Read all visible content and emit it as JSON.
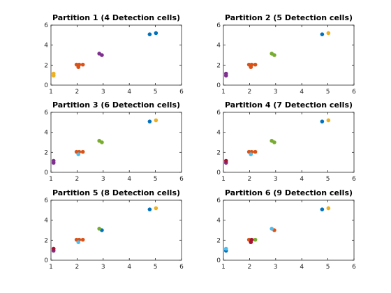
{
  "chart_data": [
    {
      "type": "scatter",
      "title": "Partition 1 (4 Detection cells)",
      "xlim": [
        1,
        6
      ],
      "ylim": [
        0,
        6
      ],
      "xticks": [
        1,
        2,
        3,
        4,
        5,
        6
      ],
      "yticks": [
        0,
        2,
        4,
        6
      ],
      "series": [
        {
          "color": "#0072BD",
          "points": [
            [
              4.78,
              5.08
            ],
            [
              5.02,
              5.2
            ]
          ]
        },
        {
          "color": "#D95319",
          "points": [
            [
              1.98,
              2.05
            ],
            [
              2.05,
              1.8
            ],
            [
              2.08,
              2.05
            ],
            [
              2.22,
              2.05
            ]
          ]
        },
        {
          "color": "#EDB120",
          "points": [
            [
              1.1,
              1.15
            ],
            [
              1.1,
              0.95
            ]
          ]
        },
        {
          "color": "#7E2F8E",
          "points": [
            [
              2.85,
              3.15
            ],
            [
              2.95,
              3.0
            ]
          ]
        }
      ]
    },
    {
      "type": "scatter",
      "title": "Partition 2 (5 Detection cells)",
      "xlim": [
        1,
        6
      ],
      "ylim": [
        0,
        6
      ],
      "xticks": [
        1,
        2,
        3,
        4,
        5,
        6
      ],
      "yticks": [
        0,
        2,
        4,
        6
      ],
      "series": [
        {
          "color": "#0072BD",
          "points": [
            [
              4.78,
              5.08
            ]
          ]
        },
        {
          "color": "#D95319",
          "points": [
            [
              1.98,
              2.05
            ],
            [
              2.05,
              1.8
            ],
            [
              2.08,
              2.05
            ],
            [
              2.22,
              2.05
            ]
          ]
        },
        {
          "color": "#EDB120",
          "points": [
            [
              5.02,
              5.2
            ]
          ]
        },
        {
          "color": "#7E2F8E",
          "points": [
            [
              1.1,
              1.15
            ],
            [
              1.1,
              0.95
            ]
          ]
        },
        {
          "color": "#77AC30",
          "points": [
            [
              2.85,
              3.15
            ],
            [
              2.95,
              3.0
            ]
          ]
        }
      ]
    },
    {
      "type": "scatter",
      "title": "Partition 3 (6 Detection cells)",
      "xlim": [
        1,
        6
      ],
      "ylim": [
        0,
        6
      ],
      "xticks": [
        1,
        2,
        3,
        4,
        5,
        6
      ],
      "yticks": [
        0,
        2,
        4,
        6
      ],
      "series": [
        {
          "color": "#0072BD",
          "points": [
            [
              4.78,
              5.08
            ]
          ]
        },
        {
          "color": "#D95319",
          "points": [
            [
              1.98,
              2.05
            ],
            [
              2.08,
              2.05
            ],
            [
              2.22,
              2.05
            ]
          ]
        },
        {
          "color": "#EDB120",
          "points": [
            [
              5.02,
              5.2
            ]
          ]
        },
        {
          "color": "#7E2F8E",
          "points": [
            [
              1.1,
              1.15
            ],
            [
              1.1,
              0.95
            ]
          ]
        },
        {
          "color": "#77AC30",
          "points": [
            [
              2.85,
              3.15
            ],
            [
              2.95,
              3.0
            ]
          ]
        },
        {
          "color": "#4DBEEE",
          "points": [
            [
              2.05,
              1.8
            ]
          ]
        }
      ]
    },
    {
      "type": "scatter",
      "title": "Partition 4 (7 Detection cells)",
      "xlim": [
        1,
        6
      ],
      "ylim": [
        0,
        6
      ],
      "xticks": [
        1,
        2,
        3,
        4,
        5,
        6
      ],
      "yticks": [
        0,
        2,
        4,
        6
      ],
      "series": [
        {
          "color": "#0072BD",
          "points": [
            [
              4.78,
              5.08
            ]
          ]
        },
        {
          "color": "#D95319",
          "points": [
            [
              1.98,
              2.05
            ],
            [
              2.08,
              2.05
            ],
            [
              2.22,
              2.05
            ]
          ]
        },
        {
          "color": "#EDB120",
          "points": [
            [
              5.02,
              5.2
            ]
          ]
        },
        {
          "color": "#7E2F8E",
          "points": [
            [
              1.1,
              0.95
            ]
          ]
        },
        {
          "color": "#77AC30",
          "points": [
            [
              2.85,
              3.15
            ],
            [
              2.95,
              3.0
            ]
          ]
        },
        {
          "color": "#4DBEEE",
          "points": [
            [
              2.05,
              1.8
            ]
          ]
        },
        {
          "color": "#A2142F",
          "points": [
            [
              1.1,
              1.15
            ]
          ]
        }
      ]
    },
    {
      "type": "scatter",
      "title": "Partition 5 (8 Detection cells)",
      "xlim": [
        1,
        6
      ],
      "ylim": [
        0,
        6
      ],
      "xticks": [
        1,
        2,
        3,
        4,
        5,
        6
      ],
      "yticks": [
        0,
        2,
        4,
        6
      ],
      "series": [
        {
          "color": "#0072BD",
          "points": [
            [
              4.78,
              5.08
            ],
            [
              2.95,
              3.0
            ]
          ]
        },
        {
          "color": "#D95319",
          "points": [
            [
              1.98,
              2.05
            ],
            [
              2.08,
              2.05
            ],
            [
              2.22,
              2.05
            ]
          ]
        },
        {
          "color": "#EDB120",
          "points": [
            [
              5.02,
              5.2
            ]
          ]
        },
        {
          "color": "#7E2F8E",
          "points": [
            [
              1.1,
              0.95
            ]
          ]
        },
        {
          "color": "#77AC30",
          "points": [
            [
              2.85,
              3.15
            ]
          ]
        },
        {
          "color": "#4DBEEE",
          "points": [
            [
              2.05,
              1.8
            ]
          ]
        },
        {
          "color": "#A2142F",
          "points": [
            [
              1.1,
              1.15
            ]
          ]
        }
      ]
    },
    {
      "type": "scatter",
      "title": "Partition 6 (9 Detection cells)",
      "xlim": [
        1,
        6
      ],
      "ylim": [
        0,
        6
      ],
      "xticks": [
        1,
        2,
        3,
        4,
        5,
        6
      ],
      "yticks": [
        0,
        2,
        4,
        6
      ],
      "series": [
        {
          "color": "#0072BD",
          "points": [
            [
              4.78,
              5.08
            ],
            [
              1.1,
              0.95
            ]
          ]
        },
        {
          "color": "#D95319",
          "points": [
            [
              1.98,
              2.05
            ],
            [
              2.95,
              3.0
            ]
          ]
        },
        {
          "color": "#EDB120",
          "points": [
            [
              5.02,
              5.2
            ]
          ]
        },
        {
          "color": "#77AC30",
          "points": [
            [
              2.22,
              2.05
            ]
          ]
        },
        {
          "color": "#4DBEEE",
          "points": [
            [
              2.85,
              3.15
            ]
          ]
        },
        {
          "color": "#A2142F",
          "points": [
            [
              2.05,
              1.8
            ],
            [
              2.08,
              2.05
            ]
          ]
        },
        {
          "color": "#4DBEEE",
          "points": [
            [
              1.1,
              1.15
            ]
          ]
        }
      ]
    }
  ]
}
